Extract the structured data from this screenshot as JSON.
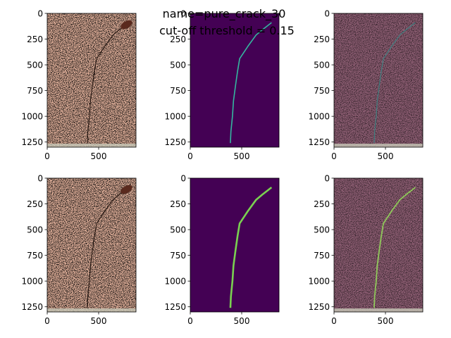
{
  "figure": {
    "title_lines": [
      "name=pure_crack_30",
      "cut-off threshold = 0.15"
    ]
  },
  "chart_data": [
    {
      "type": "image",
      "style": "photo",
      "xlim": [
        0,
        863
      ],
      "ylim": [
        1300,
        0
      ],
      "xticks": [
        0,
        500
      ],
      "yticks": [
        0,
        250,
        500,
        750,
        1000,
        1250
      ]
    },
    {
      "type": "image",
      "style": "heat-faint",
      "xlim": [
        0,
        863
      ],
      "ylim": [
        1300,
        0
      ],
      "xticks": [
        0,
        500
      ],
      "yticks": [
        0,
        250,
        500,
        750,
        1000,
        1250
      ]
    },
    {
      "type": "image",
      "style": "overlay",
      "xlim": [
        0,
        863
      ],
      "ylim": [
        1300,
        0
      ],
      "xticks": [
        0,
        500
      ],
      "yticks": [
        0,
        250,
        500,
        750,
        1000,
        1250
      ]
    },
    {
      "type": "image",
      "style": "photo",
      "xlim": [
        0,
        863
      ],
      "ylim": [
        1300,
        0
      ],
      "xticks": [
        0,
        500
      ],
      "yticks": [
        0,
        250,
        500,
        750,
        1000,
        1250
      ]
    },
    {
      "type": "image",
      "style": "heat-strong",
      "xlim": [
        0,
        863
      ],
      "ylim": [
        1300,
        0
      ],
      "xticks": [
        0,
        500
      ],
      "yticks": [
        0,
        250,
        500,
        750,
        1000,
        1250
      ]
    },
    {
      "type": "image",
      "style": "overlay-strong",
      "xlim": [
        0,
        863
      ],
      "ylim": [
        1300,
        0
      ],
      "xticks": [
        0,
        500
      ],
      "yticks": [
        0,
        250,
        500,
        750,
        1000,
        1250
      ]
    }
  ]
}
